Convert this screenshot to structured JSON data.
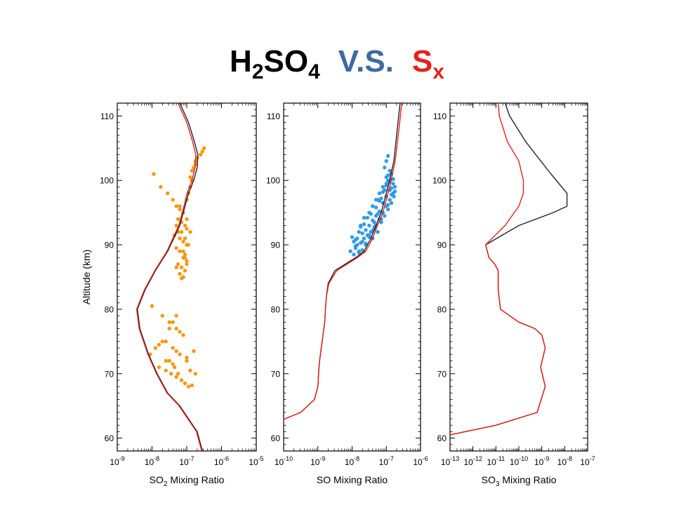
{
  "title": {
    "part1_main": "H",
    "part1_sub1": "2",
    "part1_mid": "SO",
    "part1_sub2": "4",
    "part2": "V.S.",
    "part3_main": "S",
    "part3_sub": "x",
    "colors": {
      "part1": "#000000",
      "part2": "#3e6aa0",
      "part3": "#e8201c"
    }
  },
  "chart_data": [
    {
      "type": "line",
      "panel": "SO2",
      "xlabel_prefix": "SO",
      "xlabel_sub": "2",
      "xlabel_suffix": " Mixing Ratio",
      "ylabel": "Altitude (km)",
      "xscale": "log",
      "xlim_exp": [
        -9,
        -5
      ],
      "xtick_labels": [
        "10-9",
        "10-8",
        "10-7",
        "10-6",
        "10-5"
      ],
      "ylim": [
        58,
        112
      ],
      "yticks": [
        60,
        70,
        80,
        90,
        100,
        110
      ],
      "series": [
        {
          "color": "#222222",
          "x_log10": [
            -6.55,
            -6.7,
            -6.95,
            -7.2,
            -7.55,
            -7.85,
            -8.1,
            -8.35,
            -8.42,
            -8.2,
            -7.9,
            -7.55,
            -7.2,
            -7.05,
            -6.95,
            -6.8,
            -6.7,
            -6.68,
            -6.78,
            -6.95,
            -7.2
          ],
          "y": [
            58,
            61,
            63,
            65,
            67,
            70,
            73,
            77,
            80,
            83,
            86,
            89,
            93,
            96,
            98,
            100,
            102,
            104,
            106,
            109,
            112
          ]
        },
        {
          "color": "#e8201c",
          "x_log10": [
            -6.57,
            -6.72,
            -6.97,
            -7.22,
            -7.57,
            -7.87,
            -8.12,
            -8.37,
            -8.44,
            -8.22,
            -7.92,
            -7.57,
            -7.23,
            -7.08,
            -6.99,
            -6.85,
            -6.76,
            -6.74,
            -6.83,
            -7.0,
            -7.25
          ],
          "y": [
            58,
            61,
            63,
            65,
            67,
            70,
            73,
            77,
            80,
            83,
            86,
            89,
            93,
            96,
            98,
            100,
            102,
            104,
            106,
            109,
            112
          ]
        }
      ],
      "points": {
        "color": "#f5980f",
        "x_log10": [
          -7.95,
          -7.75,
          -7.55,
          -7.4,
          -7.3,
          -7.2,
          -7.1,
          -7.0,
          -6.95,
          -6.85,
          -6.8,
          -6.75,
          -7.25,
          -7.15,
          -7.05,
          -7.0,
          -6.9,
          -7.35,
          -7.2,
          -7.1,
          -6.95,
          -7.3,
          -7.2,
          -7.05,
          -7.1,
          -7.0,
          -7.25,
          -7.15,
          -7.05,
          -6.9,
          -6.85,
          -6.75,
          -6.7,
          -6.6,
          -6.55,
          -6.5,
          -7.2,
          -7.1,
          -7.0,
          -7.15,
          -7.05,
          -7.0,
          -7.3,
          -7.25,
          -7.2,
          -7.1,
          -7.05,
          -7.0,
          -7.2,
          -7.1,
          -7.3,
          -7.15,
          -6.9,
          -8.0,
          -7.7,
          -7.5,
          -7.3,
          -7.2,
          -7.1,
          -7.6,
          -7.4,
          -7.3,
          -7.2,
          -7.0,
          -7.5,
          -7.35,
          -7.25,
          -7.15,
          -8.05,
          -7.9,
          -7.7,
          -7.5,
          -7.4,
          -7.3,
          -7.8,
          -7.6,
          -7.45,
          -7.3,
          -7.15,
          -7.05,
          -6.95,
          -6.85,
          -6.9,
          -6.75,
          -7.0,
          -6.8,
          -7.4,
          -7.6,
          -7.8
        ],
        "y": [
          101,
          99,
          98,
          97,
          96,
          95.5,
          95,
          97,
          98,
          100,
          102,
          103,
          94,
          93.5,
          93,
          92.5,
          92,
          91.5,
          91,
          90.5,
          90,
          89.5,
          89,
          88.5,
          88,
          87.5,
          87,
          86.5,
          86,
          100.5,
          101.5,
          102.5,
          103.5,
          104,
          104.5,
          105,
          96,
          95,
          94,
          92,
          91,
          90,
          93,
          92,
          91,
          89,
          88,
          87,
          85.5,
          85,
          86.5,
          84.8,
          99,
          80.5,
          79,
          78,
          77,
          76.5,
          76,
          75,
          74,
          73.5,
          73,
          72.5,
          72,
          71,
          70,
          69,
          73,
          74,
          75,
          77,
          78,
          79,
          71,
          70.5,
          70,
          69.5,
          69,
          68.5,
          68,
          68.2,
          70.5,
          70,
          72,
          73.5,
          71.5,
          72,
          74.5
        ]
      }
    },
    {
      "type": "line",
      "panel": "SO",
      "xlabel_prefix": "SO",
      "xlabel_sub": "",
      "xlabel_suffix": " Mixing Ratio",
      "xscale": "log",
      "xlim_exp": [
        -10,
        -6
      ],
      "xtick_labels": [
        "10-10",
        "10-9",
        "10-8",
        "10-7",
        "10-6"
      ],
      "ylim": [
        58,
        112
      ],
      "yticks": [
        60,
        70,
        80,
        90,
        100,
        110
      ],
      "series": [
        {
          "color": "#222222",
          "x_log10": [
            -10.05,
            -9.5,
            -9.1,
            -9.0,
            -8.98,
            -8.95,
            -8.9,
            -8.85,
            -8.8,
            -8.78,
            -8.75,
            -8.7,
            -8.5,
            -8.2,
            -7.9,
            -7.65,
            -7.45,
            -7.3,
            -7.15,
            -6.95,
            -6.78,
            -6.68,
            -6.6
          ],
          "y": [
            62.8,
            64,
            66,
            68,
            70,
            72,
            74,
            76,
            78,
            80,
            82,
            84,
            86,
            87,
            88,
            89,
            91,
            93,
            95,
            99,
            103,
            108,
            112
          ]
        },
        {
          "color": "#e8201c",
          "x_log10": [
            -10.05,
            -9.5,
            -9.1,
            -9.0,
            -8.98,
            -8.95,
            -8.9,
            -8.85,
            -8.8,
            -8.78,
            -8.75,
            -8.68,
            -8.45,
            -8.15,
            -7.85,
            -7.6,
            -7.4,
            -7.26,
            -7.1,
            -6.9,
            -6.74,
            -6.63,
            -6.55
          ],
          "y": [
            62.8,
            64,
            66,
            68,
            70,
            72,
            74,
            76,
            78,
            80,
            82,
            84,
            86,
            87,
            88,
            89,
            91,
            93,
            95,
            99,
            103,
            108,
            112
          ]
        }
      ],
      "points": {
        "color": "#2f9be8",
        "x_log10": [
          -8.05,
          -7.95,
          -7.9,
          -7.85,
          -7.8,
          -7.7,
          -7.65,
          -7.6,
          -7.5,
          -7.45,
          -7.4,
          -7.35,
          -7.3,
          -7.25,
          -7.2,
          -7.15,
          -7.1,
          -7.05,
          -7.0,
          -6.95,
          -6.9,
          -6.85,
          -6.8,
          -6.78,
          -6.75,
          -7.95,
          -7.85,
          -7.75,
          -7.7,
          -7.6,
          -7.55,
          -7.5,
          -7.4,
          -7.35,
          -7.3,
          -7.2,
          -7.15,
          -7.1,
          -7.0,
          -6.95,
          -6.9,
          -6.85,
          -6.8,
          -8.0,
          -7.9,
          -7.8,
          -7.75,
          -7.65,
          -7.55,
          -7.45,
          -7.4,
          -7.3,
          -7.25,
          -7.15,
          -7.05,
          -7.0,
          -6.95,
          -6.85,
          -7.9,
          -7.8,
          -7.7,
          -7.6,
          -7.5,
          -7.4,
          -7.35,
          -7.25,
          -7.2,
          -7.1,
          -7.0,
          -6.9,
          -6.85,
          -6.8,
          -6.75,
          -7.0,
          -6.95,
          -7.05,
          -6.9,
          -6.95,
          -7.0,
          -6.85,
          -7.1,
          -7.2,
          -7.3,
          -7.4,
          -7.5,
          -7.65,
          -7.75
        ],
        "y": [
          89,
          88.5,
          89.5,
          90,
          89,
          90.5,
          91,
          90,
          91.5,
          92,
          91,
          92.5,
          93,
          92,
          94,
          93.5,
          95,
          94.5,
          96,
          95.5,
          97,
          96.5,
          98,
          97.5,
          99,
          90.5,
          91,
          90.3,
          91.8,
          92.3,
          91.5,
          93,
          93.8,
          92.8,
          94.5,
          95.2,
          94,
          96.5,
          97.5,
          96.2,
          98.5,
          97.8,
          99.5,
          91.2,
          90.8,
          92,
          92.8,
          93.2,
          94.2,
          94.8,
          96,
          95.8,
          97,
          97.2,
          98.5,
          99.2,
          100,
          101,
          89.8,
          88.8,
          89.2,
          90.2,
          91.2,
          92.2,
          93.5,
          94.8,
          96.8,
          98.2,
          100.5,
          99.8,
          98.8,
          100.2,
          98.3,
          103,
          103.8,
          102,
          101.5,
          100.8,
          99.5,
          100.2,
          99,
          98,
          97,
          96,
          95,
          94.2,
          93
        ]
      }
    },
    {
      "type": "line",
      "panel": "SO3",
      "xlabel_prefix": "SO",
      "xlabel_sub": "3",
      "xlabel_suffix": " Mixing Ratio",
      "xscale": "log",
      "xlim_exp": [
        -13,
        -7
      ],
      "xtick_labels": [
        "10-13",
        "10-12",
        "10-11",
        "10-10",
        "10-9",
        "10-8",
        "10-7"
      ],
      "ylim": [
        58,
        112
      ],
      "yticks": [
        60,
        70,
        80,
        90,
        100,
        110
      ],
      "series": [
        {
          "color": "#222222",
          "x_log10": [
            -13.0,
            -11.0,
            -9.2,
            -8.85,
            -9.05,
            -8.85,
            -9.0,
            -9.3,
            -10.0,
            -10.8,
            -10.9,
            -10.9,
            -11.05,
            -11.3,
            -11.45,
            -10.0,
            -8.5,
            -7.9,
            -7.9,
            -8.6,
            -9.7,
            -10.4,
            -10.6
          ],
          "y": [
            60.5,
            62,
            64,
            68,
            71,
            74,
            76,
            77,
            78,
            80,
            83,
            86,
            87,
            88,
            90,
            93,
            95,
            96,
            98,
            101,
            106,
            110,
            112
          ]
        },
        {
          "color": "#e8201c",
          "x_log10": [
            -13.0,
            -11.0,
            -9.2,
            -8.85,
            -9.05,
            -8.85,
            -9.0,
            -9.3,
            -10.0,
            -10.8,
            -10.9,
            -10.9,
            -11.05,
            -11.3,
            -11.45,
            -10.6,
            -10.0,
            -9.8,
            -9.8,
            -10.0,
            -10.5,
            -10.85,
            -10.9
          ],
          "y": [
            60.5,
            62,
            64,
            68,
            71,
            74,
            76,
            77,
            78,
            80,
            83,
            86,
            87,
            88,
            90,
            93,
            96,
            98,
            100,
            103,
            106,
            110,
            112
          ]
        }
      ]
    }
  ]
}
